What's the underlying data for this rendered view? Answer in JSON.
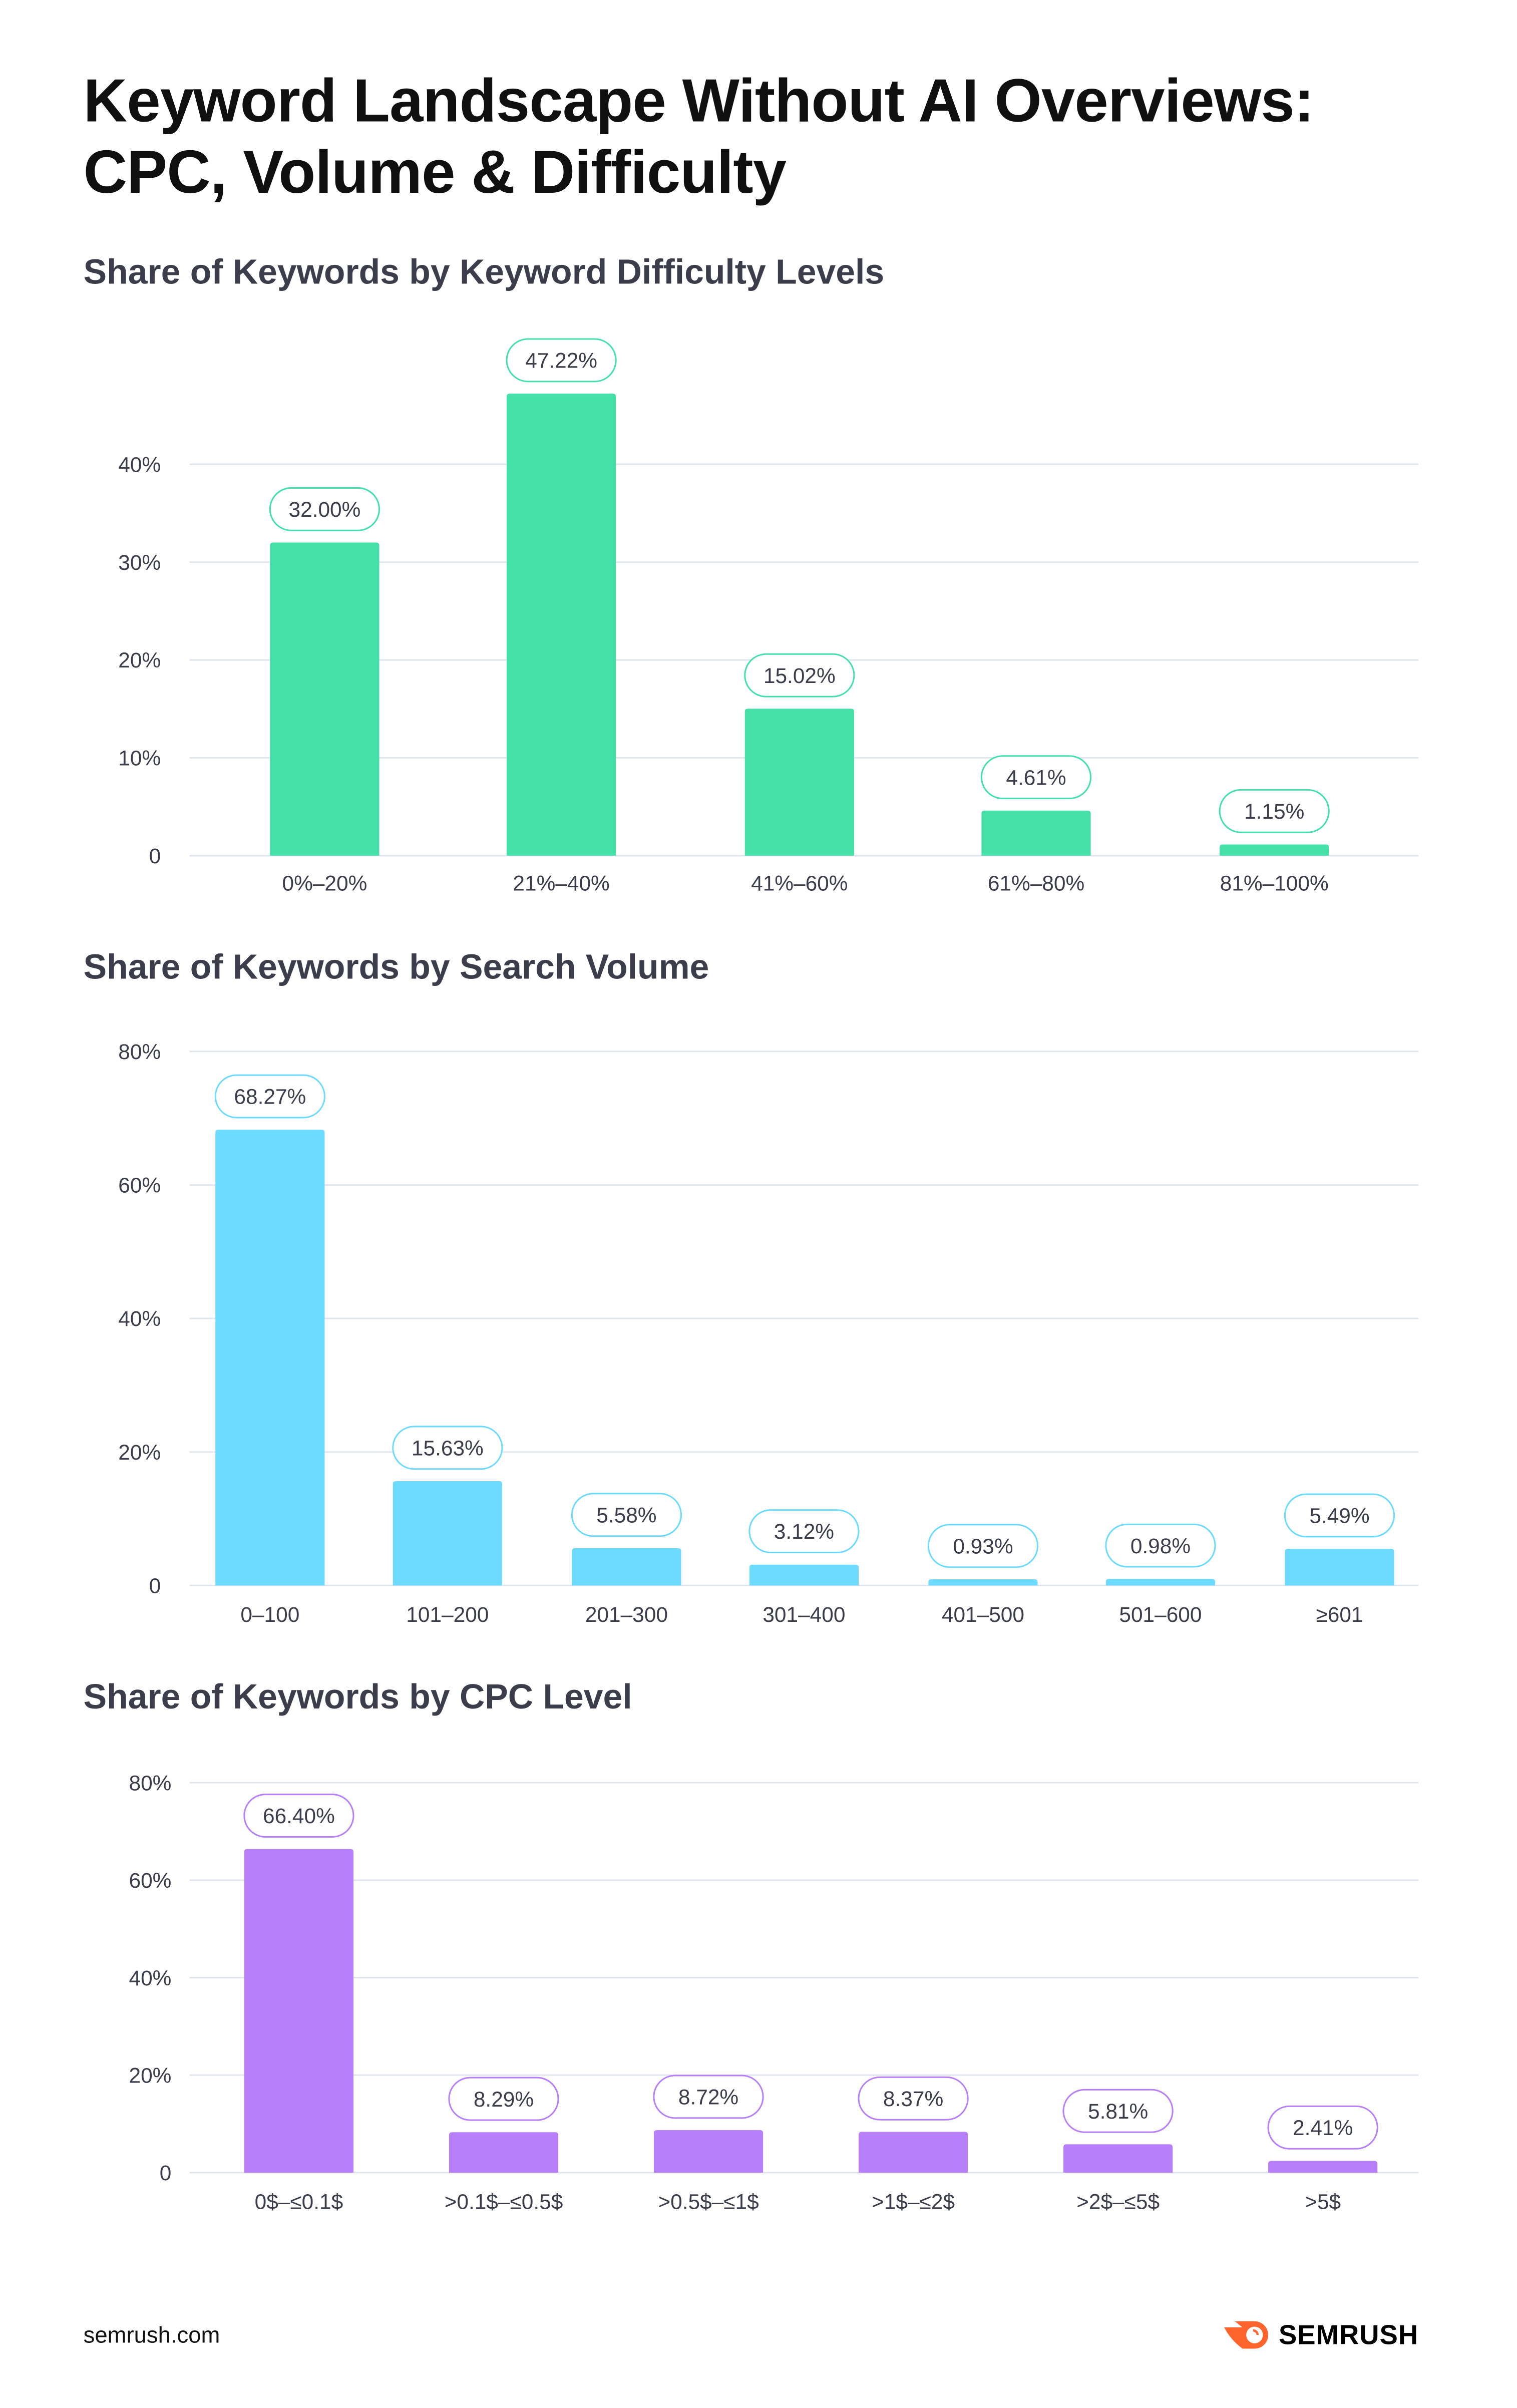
{
  "title_line1": "Keyword Landscape Without AI Overviews:",
  "title_line2": "CPC, Volume & Difficulty",
  "footer": {
    "source": "semrush.com",
    "brand": "SEMRUSH"
  },
  "colors": {
    "difficulty": "#45E0A8",
    "volume": "#6DDAFF",
    "cpc": "#B77FF9",
    "grid": "#E1E5EF",
    "text": "#3b3e4a",
    "brand": "#FF642D"
  },
  "chart_data": [
    {
      "type": "bar",
      "title": "Share of Keywords by Keyword Difficulty Levels",
      "categories": [
        "0%–20%",
        "21%–40%",
        "41%–60%",
        "61%–80%",
        "81%–100%"
      ],
      "values": [
        32.0,
        47.22,
        15.02,
        4.61,
        1.15
      ],
      "value_labels": [
        "32.00%",
        "47.22%",
        "15.02%",
        "4.61%",
        "1.15%"
      ],
      "yticks": [
        0,
        10,
        20,
        30,
        40
      ],
      "ytick_labels": [
        "0",
        "10%",
        "20%",
        "30%",
        "40%"
      ],
      "ylim": [
        0,
        40
      ],
      "xlabel": "",
      "ylabel": "",
      "grid": true
    },
    {
      "type": "bar",
      "title": "Share of Keywords by Search Volume",
      "categories": [
        "0–100",
        "101–200",
        "201–300",
        "301–400",
        "401–500",
        "501–600",
        "≥601"
      ],
      "values": [
        68.27,
        15.63,
        5.58,
        3.12,
        0.93,
        0.98,
        5.49
      ],
      "value_labels": [
        "68.27%",
        "15.63%",
        "5.58%",
        "3.12%",
        "0.93%",
        "0.98%",
        "5.49%"
      ],
      "yticks": [
        0,
        20,
        40,
        60,
        80
      ],
      "ytick_labels": [
        "0",
        "20%",
        "40%",
        "60%",
        "80%"
      ],
      "ylim": [
        0,
        80
      ],
      "xlabel": "",
      "ylabel": "",
      "grid": true
    },
    {
      "type": "bar",
      "title": "Share of Keywords by CPC Level",
      "categories": [
        "0$–≤0.1$",
        ">0.1$–≤0.5$",
        ">0.5$–≤1$",
        ">1$–≤2$",
        ">2$–≤5$",
        ">5$"
      ],
      "values": [
        66.4,
        8.29,
        8.72,
        8.37,
        5.81,
        2.41
      ],
      "value_labels": [
        "66.40%",
        "8.29%",
        "8.72%",
        "8.37%",
        "5.81%",
        "2.41%"
      ],
      "yticks": [
        0,
        20,
        40,
        60,
        80
      ],
      "ytick_labels": [
        "0",
        "20%",
        "40%",
        "60%",
        "80%"
      ],
      "ylim": [
        0,
        80
      ],
      "xlabel": "",
      "ylabel": "",
      "grid": true
    }
  ]
}
